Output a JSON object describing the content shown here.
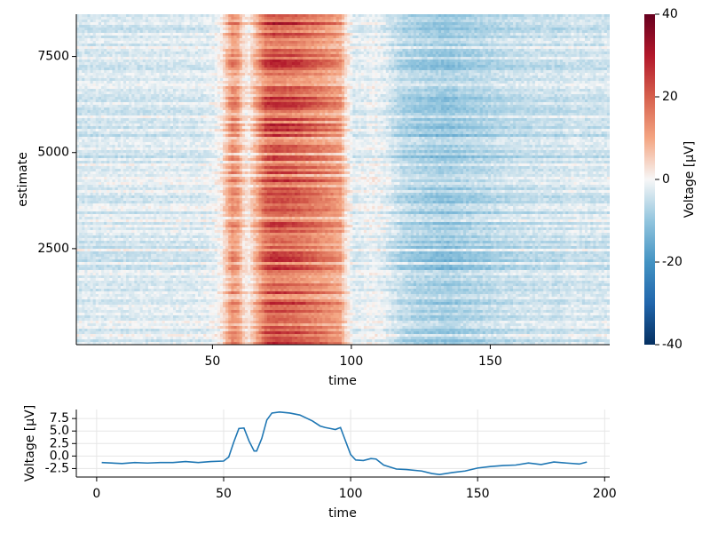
{
  "chart_data": [
    {
      "type": "heatmap",
      "title": "",
      "xlabel": "time",
      "ylabel": "estimate",
      "xlim": [
        1,
        193
      ],
      "ylim": [
        1,
        8600
      ],
      "x_ticks": [
        50,
        100,
        150
      ],
      "x_tick_labels": [
        "50",
        "100",
        "150"
      ],
      "y_ticks": [
        2500,
        5000,
        7500
      ],
      "y_tick_labels": [
        "2500",
        "5000",
        "7500"
      ],
      "grid": false,
      "colorscale": "RdBu (reversed)",
      "colorbar": {
        "label": "Voltage [µV]",
        "range": [
          -40,
          40
        ],
        "ticks": [
          -40,
          -20,
          0,
          20,
          40
        ],
        "tick_labels": [
          "-40",
          "-20",
          "0",
          "20",
          "40"
        ],
        "position": "right"
      },
      "mean_profile_uv": [
        [
          1,
          -1.2
        ],
        [
          45,
          -1.0
        ],
        [
          50,
          -0.6
        ],
        [
          53,
          0.5
        ],
        [
          55,
          3.0
        ],
        [
          57,
          5.3
        ],
        [
          59,
          4.5
        ],
        [
          61,
          1.6
        ],
        [
          63,
          0.9
        ],
        [
          66,
          4.0
        ],
        [
          69,
          7.6
        ],
        [
          72,
          8.5
        ],
        [
          80,
          7.8
        ],
        [
          88,
          6.2
        ],
        [
          93,
          5.1
        ],
        [
          96,
          4.4
        ],
        [
          98,
          1.5
        ],
        [
          101,
          -0.9
        ],
        [
          104,
          -0.7
        ],
        [
          108,
          -0.3
        ],
        [
          112,
          -0.8
        ],
        [
          118,
          -2.4
        ],
        [
          124,
          -3.0
        ],
        [
          130,
          -3.3
        ],
        [
          135,
          -3.6
        ],
        [
          140,
          -3.1
        ],
        [
          145,
          -2.8
        ],
        [
          150,
          -2.5
        ],
        [
          155,
          -2.1
        ],
        [
          160,
          -1.9
        ],
        [
          170,
          -1.6
        ],
        [
          175,
          -1.8
        ],
        [
          180,
          -1.2
        ],
        [
          185,
          -1.5
        ],
        [
          193,
          -1.3
        ]
      ]
    },
    {
      "type": "line",
      "title": "",
      "xlabel": "time",
      "ylabel": "Voltage [µV]",
      "xlim": [
        -8,
        202
      ],
      "ylim": [
        -4.2,
        9.3
      ],
      "x_ticks": [
        0,
        50,
        100,
        150,
        200
      ],
      "x_tick_labels": [
        "0",
        "50",
        "100",
        "150",
        "200"
      ],
      "y_ticks": [
        -2.5,
        0.0,
        2.5,
        5.0,
        7.5
      ],
      "y_tick_labels": [
        "-2.5",
        "0.0",
        "2.5",
        "5.0",
        "7.5"
      ],
      "grid": true,
      "color": "#1f77b4",
      "x": [
        2,
        10,
        15,
        20,
        25,
        30,
        35,
        40,
        45,
        50,
        52,
        54,
        56,
        58,
        60,
        62,
        63,
        65,
        67,
        69,
        72,
        76,
        80,
        85,
        88,
        90,
        92,
        94,
        96,
        98,
        100,
        102,
        105,
        108,
        110,
        113,
        118,
        122,
        128,
        132,
        135,
        140,
        145,
        150,
        155,
        160,
        165,
        170,
        175,
        180,
        185,
        190,
        193
      ],
      "y": [
        -1.3,
        -1.5,
        -1.3,
        -1.4,
        -1.3,
        -1.3,
        -1.1,
        -1.3,
        -1.1,
        -1.0,
        -0.2,
        2.8,
        5.5,
        5.6,
        3.0,
        1.0,
        1.0,
        3.5,
        7.2,
        8.6,
        8.8,
        8.6,
        8.2,
        7.0,
        6.0,
        5.7,
        5.5,
        5.3,
        5.7,
        3.0,
        0.3,
        -0.8,
        -0.9,
        -0.5,
        -0.6,
        -1.8,
        -2.6,
        -2.7,
        -3.0,
        -3.5,
        -3.7,
        -3.3,
        -3.0,
        -2.4,
        -2.1,
        -1.9,
        -1.8,
        -1.4,
        -1.7,
        -1.2,
        -1.4,
        -1.6,
        -1.2
      ]
    }
  ]
}
